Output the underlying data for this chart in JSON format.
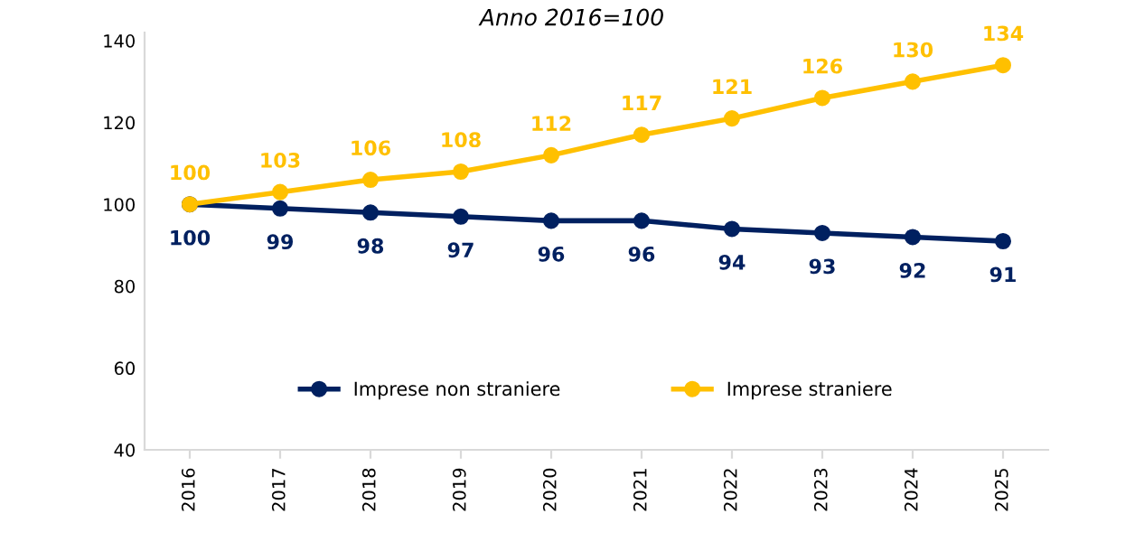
{
  "chart_data": {
    "type": "line",
    "title": "Anno 2016=100",
    "categories": [
      "2016",
      "2017",
      "2018",
      "2019",
      "2020",
      "2021",
      "2022",
      "2023",
      "2024",
      "2025"
    ],
    "series": [
      {
        "name": "Imprese non straniere",
        "color": "#002060",
        "values": [
          100,
          99,
          98,
          97,
          96,
          96,
          94,
          93,
          92,
          91
        ]
      },
      {
        "name": "Imprese straniere",
        "color": "#ffc000",
        "values": [
          100,
          103,
          106,
          108,
          112,
          117,
          121,
          126,
          130,
          134
        ]
      }
    ],
    "ylim": [
      40,
      142
    ],
    "yticks": [
      40,
      60,
      80,
      100,
      120,
      140
    ],
    "grid": false,
    "legend": "bottom",
    "marker": "circle",
    "line_style": "solid",
    "data_labels": true
  }
}
